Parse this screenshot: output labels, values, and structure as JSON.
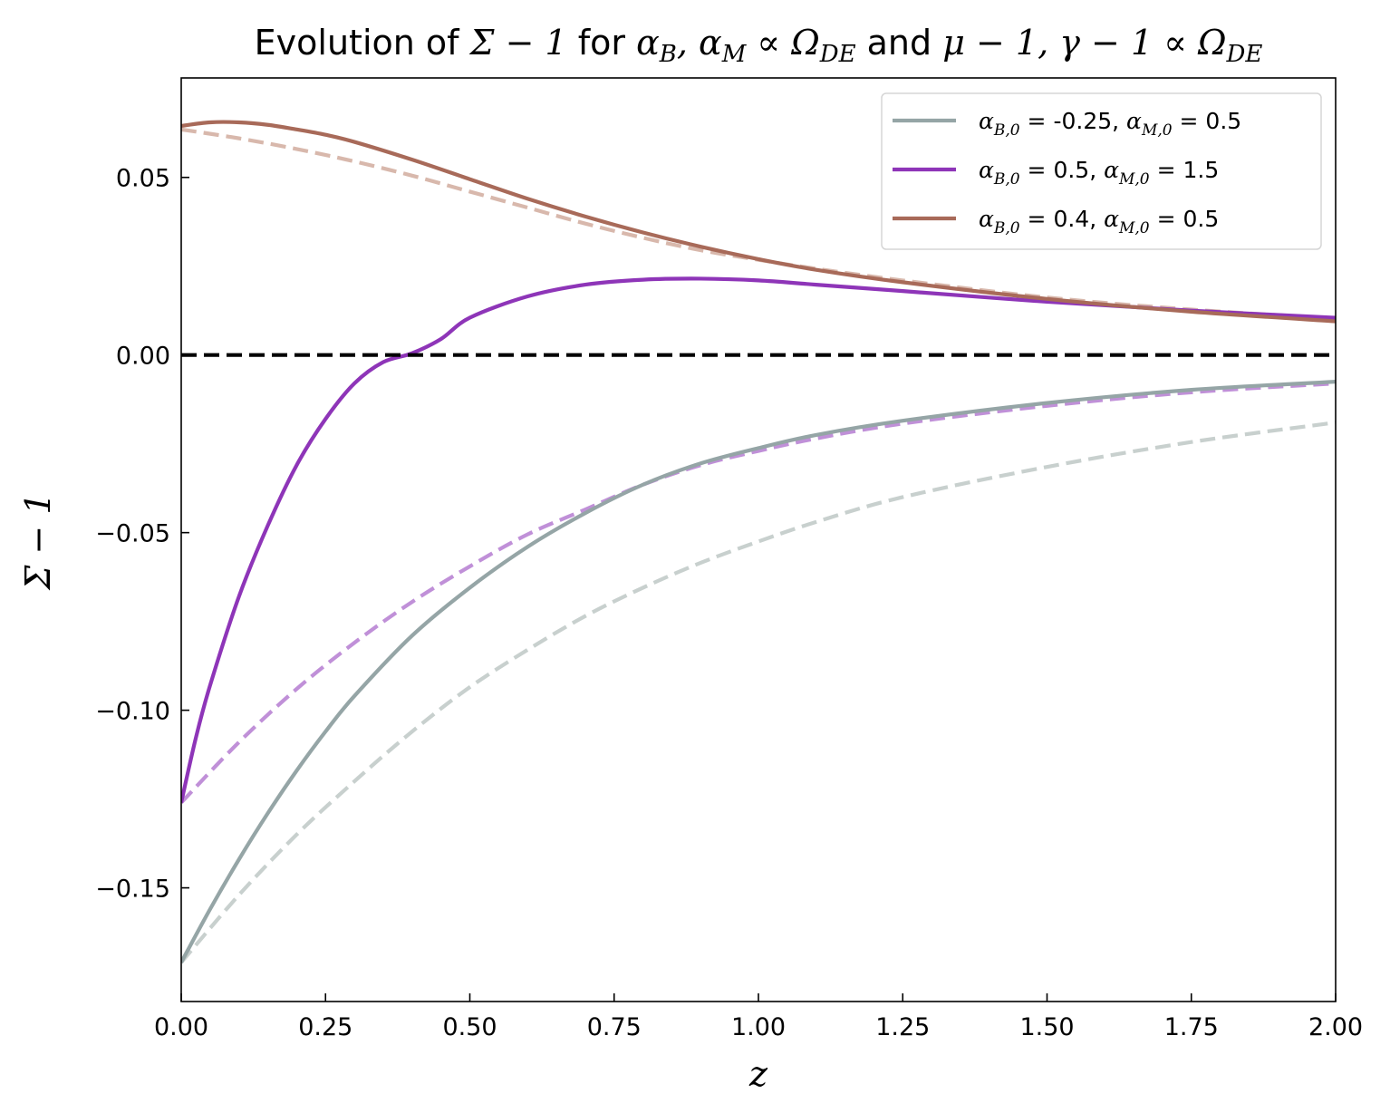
{
  "chart_data": {
    "type": "line",
    "title": "Evolution of Σ − 1 for αB, αM ∝ ΩDE and μ − 1, γ − 1 ∝ ΩDE",
    "title_parts": {
      "t1": "Evolution of ",
      "m1": "Σ − 1",
      "t2": " for ",
      "m2": "α",
      "m2_sub": "B",
      "m3": ", α",
      "m3_sub": "M",
      "m4": " ∝ Ω",
      "m4_sub": "DE",
      "t3": " and ",
      "m5": "μ − 1, γ − 1 ∝ Ω",
      "m5_sub": "DE"
    },
    "xlabel": "z",
    "ylabel": "Σ − 1",
    "xlim": [
      0,
      2
    ],
    "ylim": [
      -0.182,
      0.078
    ],
    "xticks": [
      0,
      0.25,
      0.5,
      0.75,
      1.0,
      1.25,
      1.5,
      1.75,
      2.0
    ],
    "xtick_labels": [
      "0.00",
      "0.25",
      "0.50",
      "0.75",
      "1.00",
      "1.25",
      "1.50",
      "1.75",
      "2.00"
    ],
    "yticks": [
      0.05,
      0.0,
      -0.05,
      -0.1,
      -0.15
    ],
    "ytick_labels": [
      "0.05",
      "0.00",
      "−0.05",
      "−0.10",
      "−0.15"
    ],
    "grid": false,
    "legend_position": "top-right",
    "reference_line": {
      "y": 0.0,
      "color": "#000000",
      "style": "dashed"
    },
    "series": [
      {
        "name": "αB,0 = -0.25, αM,0 = 0.5",
        "legend": {
          "a": "α",
          "a_sub": "B,0",
          "eq1": " = ",
          "v1": "-0.25, ",
          "b": "α",
          "b_sub": "M,0",
          "eq2": " = ",
          "v2": "0.5"
        },
        "color": "#95a5a6",
        "style": "solid",
        "x": [
          0,
          0.05,
          0.1,
          0.15,
          0.2,
          0.25,
          0.3,
          0.4,
          0.5,
          0.6,
          0.7,
          0.8,
          0.9,
          1.0,
          1.1,
          1.25,
          1.5,
          1.75,
          2.0
        ],
        "y": [
          -0.171,
          -0.156,
          -0.142,
          -0.129,
          -0.117,
          -0.106,
          -0.096,
          -0.079,
          -0.0655,
          -0.054,
          -0.0445,
          -0.0365,
          -0.0305,
          -0.0262,
          -0.0225,
          -0.0185,
          -0.0135,
          -0.0098,
          -0.0075
        ]
      },
      {
        "name": "αB,0 = 0.5, αM,0 = 1.5",
        "legend": {
          "a": "α",
          "a_sub": "B,0",
          "eq1": " = ",
          "v1": "0.5, ",
          "b": "α",
          "b_sub": "M,0",
          "eq2": " = ",
          "v2": "1.5"
        },
        "color": "#8e35b8",
        "style": "solid",
        "x": [
          0,
          0.025,
          0.05,
          0.1,
          0.15,
          0.2,
          0.25,
          0.3,
          0.35,
          0.4,
          0.45,
          0.5,
          0.6,
          0.7,
          0.8,
          0.9,
          1.0,
          1.1,
          1.25,
          1.5,
          1.75,
          2.0
        ],
        "y": [
          -0.126,
          -0.108,
          -0.093,
          -0.068,
          -0.048,
          -0.031,
          -0.018,
          -0.008,
          -0.002,
          0.0005,
          0.0045,
          0.0105,
          0.0165,
          0.0198,
          0.0212,
          0.0215,
          0.021,
          0.0198,
          0.018,
          0.015,
          0.0125,
          0.0105
        ]
      },
      {
        "name": "αB,0 = 0.4, αM,0 = 0.5",
        "legend": {
          "a": "α",
          "a_sub": "B,0",
          "eq1": " = ",
          "v1": "0.4, ",
          "b": "α",
          "b_sub": "M,0",
          "eq2": " = ",
          "v2": "0.5"
        },
        "color": "#a86a59",
        "style": "solid",
        "x": [
          0,
          0.05,
          0.1,
          0.15,
          0.2,
          0.25,
          0.3,
          0.4,
          0.5,
          0.6,
          0.7,
          0.8,
          0.9,
          1.0,
          1.1,
          1.25,
          1.5,
          1.75,
          2.0
        ],
        "y": [
          0.0645,
          0.0655,
          0.0655,
          0.0648,
          0.0635,
          0.062,
          0.06,
          0.055,
          0.0495,
          0.044,
          0.039,
          0.0345,
          0.0305,
          0.027,
          0.024,
          0.0205,
          0.0158,
          0.0122,
          0.0095
        ]
      },
      {
        "name": "",
        "color": "#c8d0ce",
        "style": "dashed",
        "x": [
          0,
          0.1,
          0.2,
          0.3,
          0.4,
          0.5,
          0.6,
          0.7,
          0.8,
          0.9,
          1.0,
          1.1,
          1.25,
          1.5,
          1.75,
          2.0
        ],
        "y": [
          -0.171,
          -0.152,
          -0.135,
          -0.12,
          -0.106,
          -0.0935,
          -0.083,
          -0.0735,
          -0.0655,
          -0.0585,
          -0.0525,
          -0.047,
          -0.04,
          -0.0315,
          -0.0245,
          -0.019
        ]
      },
      {
        "name": "",
        "color": "#c090d8",
        "style": "dashed",
        "x": [
          0,
          0.1,
          0.2,
          0.3,
          0.4,
          0.5,
          0.6,
          0.7,
          0.8,
          0.9,
          1.0,
          1.1,
          1.25,
          1.5,
          1.75,
          2.0
        ],
        "y": [
          -0.126,
          -0.109,
          -0.094,
          -0.081,
          -0.0695,
          -0.0595,
          -0.0505,
          -0.0435,
          -0.0365,
          -0.031,
          -0.027,
          -0.0235,
          -0.0193,
          -0.0143,
          -0.0105,
          -0.008
        ]
      },
      {
        "name": "",
        "color": "#d8b8ac",
        "style": "dashed",
        "x": [
          0,
          0.1,
          0.2,
          0.3,
          0.4,
          0.5,
          0.6,
          0.7,
          0.8,
          0.9,
          1.0,
          1.1,
          1.25,
          1.5,
          1.75,
          2.0
        ],
        "y": [
          0.0635,
          0.061,
          0.058,
          0.0545,
          0.0505,
          0.046,
          0.0415,
          0.037,
          0.033,
          0.0295,
          0.0268,
          0.0243,
          0.021,
          0.0162,
          0.0128,
          0.0103
        ]
      }
    ]
  }
}
